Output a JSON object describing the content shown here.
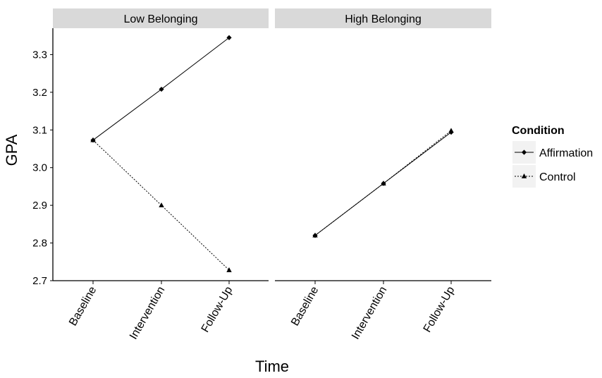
{
  "chart_data": {
    "type": "line",
    "xlabel": "Time",
    "ylabel": "GPA",
    "categories": [
      "Baseline",
      "Intervention",
      "Follow-Up"
    ],
    "ylim": [
      2.7,
      3.37
    ],
    "yticks": [
      "2.7",
      "2.8",
      "2.9",
      "3.0",
      "3.1",
      "3.2",
      "3.3"
    ],
    "grid": false,
    "legend": {
      "title": "Condition",
      "position": "right",
      "entries": [
        {
          "name": "Affirmation",
          "marker": "diamond",
          "line": "solid"
        },
        {
          "name": "Control",
          "marker": "triangle",
          "line": "dotted"
        }
      ]
    },
    "panels": [
      {
        "title": "Low Belonging",
        "series": [
          {
            "name": "Affirmation",
            "values": [
              3.073,
              3.208,
              3.345
            ]
          },
          {
            "name": "Control",
            "values": [
              3.073,
              2.9,
              2.728
            ]
          }
        ]
      },
      {
        "title": "High Belonging",
        "series": [
          {
            "name": "Affirmation",
            "values": [
              2.82,
              2.958,
              3.094
            ]
          },
          {
            "name": "Control",
            "values": [
              2.82,
              2.958,
              3.098
            ]
          }
        ]
      }
    ]
  }
}
